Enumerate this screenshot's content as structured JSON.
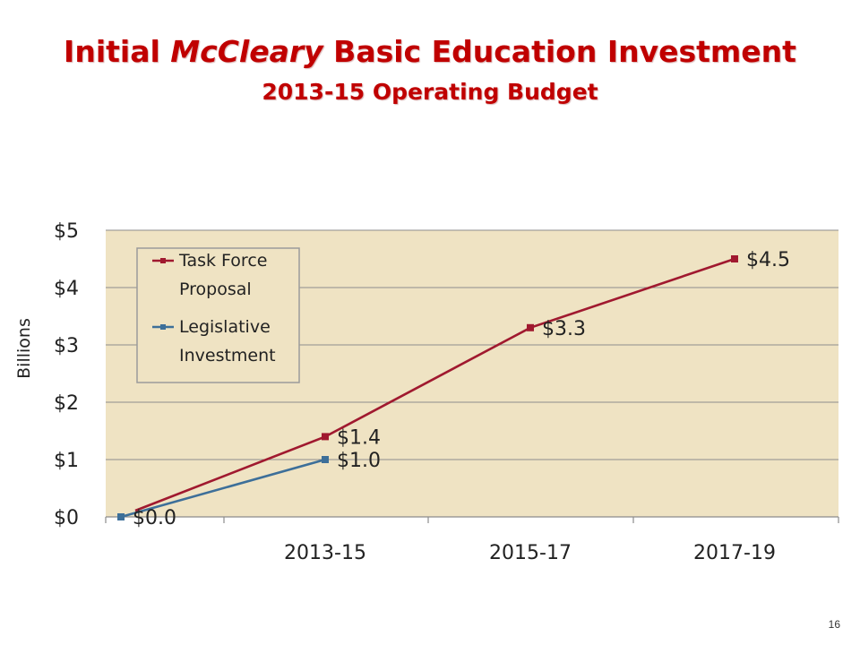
{
  "title": {
    "part1": "Initial ",
    "italic": "McCleary",
    "part2": " Basic Education Investment",
    "subtitle": "2013-15 Operating Budget"
  },
  "page_number": "16",
  "colors": {
    "title": "#c00000",
    "plot_bg": "#efe3c3",
    "task_force": "#a0192f",
    "legislative": "#3d6f99"
  },
  "chart_data": {
    "type": "line",
    "title": "",
    "xlabel": "",
    "ylabel": "Billions",
    "ylim": [
      0,
      5
    ],
    "yticks": [
      0,
      1,
      2,
      3,
      4,
      5
    ],
    "ytick_labels": [
      "$0",
      "$1",
      "$2",
      "$3",
      "$4",
      "$5"
    ],
    "categories": [
      "",
      "2013-15",
      "2015-17",
      "2017-19"
    ],
    "grid": true,
    "legend": "top-left",
    "series": [
      {
        "name": "Task Force Proposal",
        "legend_lines": [
          "Task Force",
          "Proposal"
        ],
        "values": [
          0.0,
          1.4,
          3.3,
          4.5
        ],
        "labels": [
          "",
          "$1.4",
          "$3.3",
          "$4.5"
        ]
      },
      {
        "name": "Legislative Investment",
        "legend_lines": [
          "Legislative",
          "Investment"
        ],
        "values": [
          0.0,
          1.0,
          null,
          null
        ],
        "labels": [
          "$0.0",
          "$1.0",
          "",
          ""
        ]
      }
    ]
  }
}
